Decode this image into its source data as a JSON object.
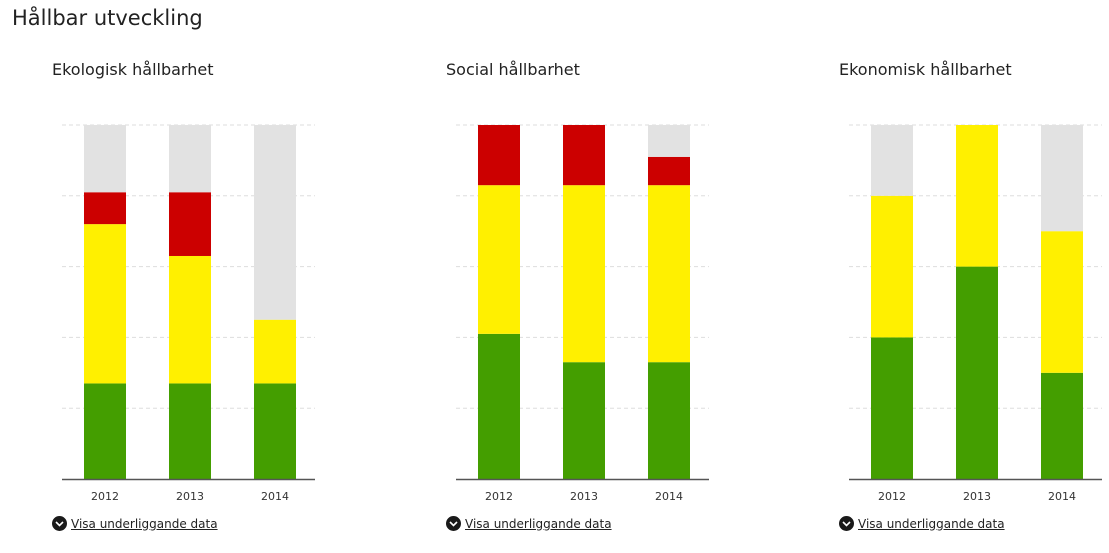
{
  "page": {
    "title": "Hållbar utveckling"
  },
  "colors": {
    "ecological_green": "#449e00",
    "social_yellow": "#fff000",
    "negative_red": "#cc0000",
    "remainder_gray": "#e2e2e2",
    "grid": "#dddddd",
    "axis": "#555555"
  },
  "toggle_label": "Visa underliggande data",
  "toggle_icon": "chevron-down-icon",
  "chart_data": [
    {
      "type": "bar",
      "stacked": true,
      "title": "Ekologisk hållbarhet",
      "categories": [
        "2012",
        "2013",
        "2014"
      ],
      "ylim": [
        0,
        100
      ],
      "grid": true,
      "series": [
        {
          "color": "#449e00",
          "values": [
            27,
            27,
            27
          ]
        },
        {
          "color": "#fff000",
          "values": [
            45,
            36,
            18
          ]
        },
        {
          "color": "#cc0000",
          "values": [
            9,
            18,
            0
          ]
        },
        {
          "color": "#e2e2e2",
          "values": [
            19,
            19,
            55
          ]
        }
      ]
    },
    {
      "type": "bar",
      "stacked": true,
      "title": "Social hållbarhet",
      "categories": [
        "2012",
        "2013",
        "2014"
      ],
      "ylim": [
        0,
        100
      ],
      "grid": true,
      "series": [
        {
          "color": "#449e00",
          "values": [
            41,
            33,
            33
          ]
        },
        {
          "color": "#fff000",
          "values": [
            42,
            50,
            50
          ]
        },
        {
          "color": "#cc0000",
          "values": [
            17,
            17,
            8
          ]
        },
        {
          "color": "#e2e2e2",
          "values": [
            0,
            0,
            9
          ]
        }
      ]
    },
    {
      "type": "bar",
      "stacked": true,
      "title": "Ekonomisk hållbarhet",
      "categories": [
        "2012",
        "2013",
        "2014"
      ],
      "ylim": [
        0,
        100
      ],
      "grid": true,
      "series": [
        {
          "color": "#449e00",
          "values": [
            40,
            60,
            30
          ]
        },
        {
          "color": "#fff000",
          "values": [
            40,
            40,
            40
          ]
        },
        {
          "color": "#cc0000",
          "values": [
            0,
            0,
            0
          ]
        },
        {
          "color": "#e2e2e2",
          "values": [
            20,
            0,
            30
          ]
        }
      ]
    }
  ]
}
